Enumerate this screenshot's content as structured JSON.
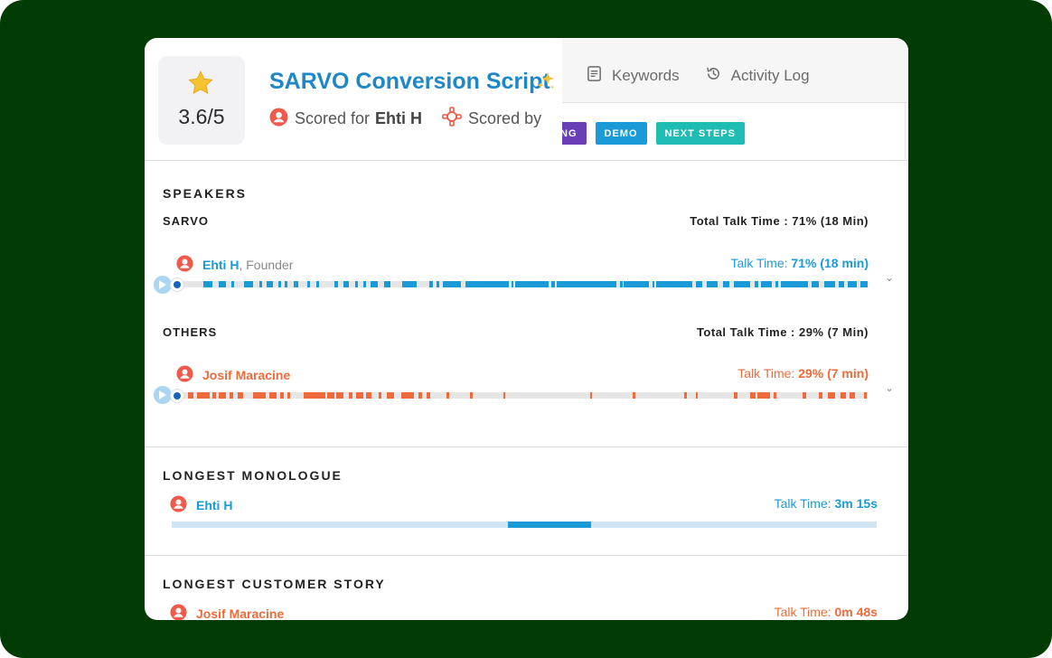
{
  "header": {
    "score": "3.6/5",
    "title": "SARVO Conversion Script",
    "scored_for_label": "Scored for",
    "scored_for_name": "Ehti H",
    "scored_by_label": "Scored by",
    "tabs": [
      {
        "label": "Keywords",
        "icon": "document-list-icon"
      },
      {
        "label": "Activity Log",
        "icon": "history-icon"
      }
    ],
    "tags": [
      {
        "label": "NG",
        "color": "#6a3fb5"
      },
      {
        "label": "DEMO",
        "color": "#1a9ad6"
      },
      {
        "label": "NEXT STEPS",
        "color": "#1fbcb3"
      }
    ]
  },
  "speakers": {
    "title": "SPEAKERS",
    "groups": [
      {
        "name": "SARVO",
        "total": "Total Talk Time : 71% (18 Min)",
        "person": "Ehti H",
        "role": ", Founder",
        "talk_label": "Talk Time:",
        "talk_value": "71%  (18 min)",
        "color": "#1a9ad6"
      },
      {
        "name": "OTHERS",
        "total": "Total Talk Time : 29% (7 Min)",
        "person": "Josif Maracine",
        "role": "",
        "talk_label": "Talk Time:",
        "talk_value": "29%  (7 min)",
        "color": "#ef6a3a"
      }
    ]
  },
  "longest_monologue": {
    "title": "LONGEST MONOLOGUE",
    "person": "Ehti H",
    "talk_label": "Talk Time:",
    "talk_value": "3m 15s"
  },
  "longest_story": {
    "title": "LONGEST CUSTOMER STORY",
    "person": "Josif Maracine",
    "talk_label": "Talk Time:",
    "talk_value": "0m 48s"
  },
  "colors": {
    "background": "#033b04",
    "accent_blue": "#1a9ad6",
    "accent_orange": "#ef6a3a"
  }
}
